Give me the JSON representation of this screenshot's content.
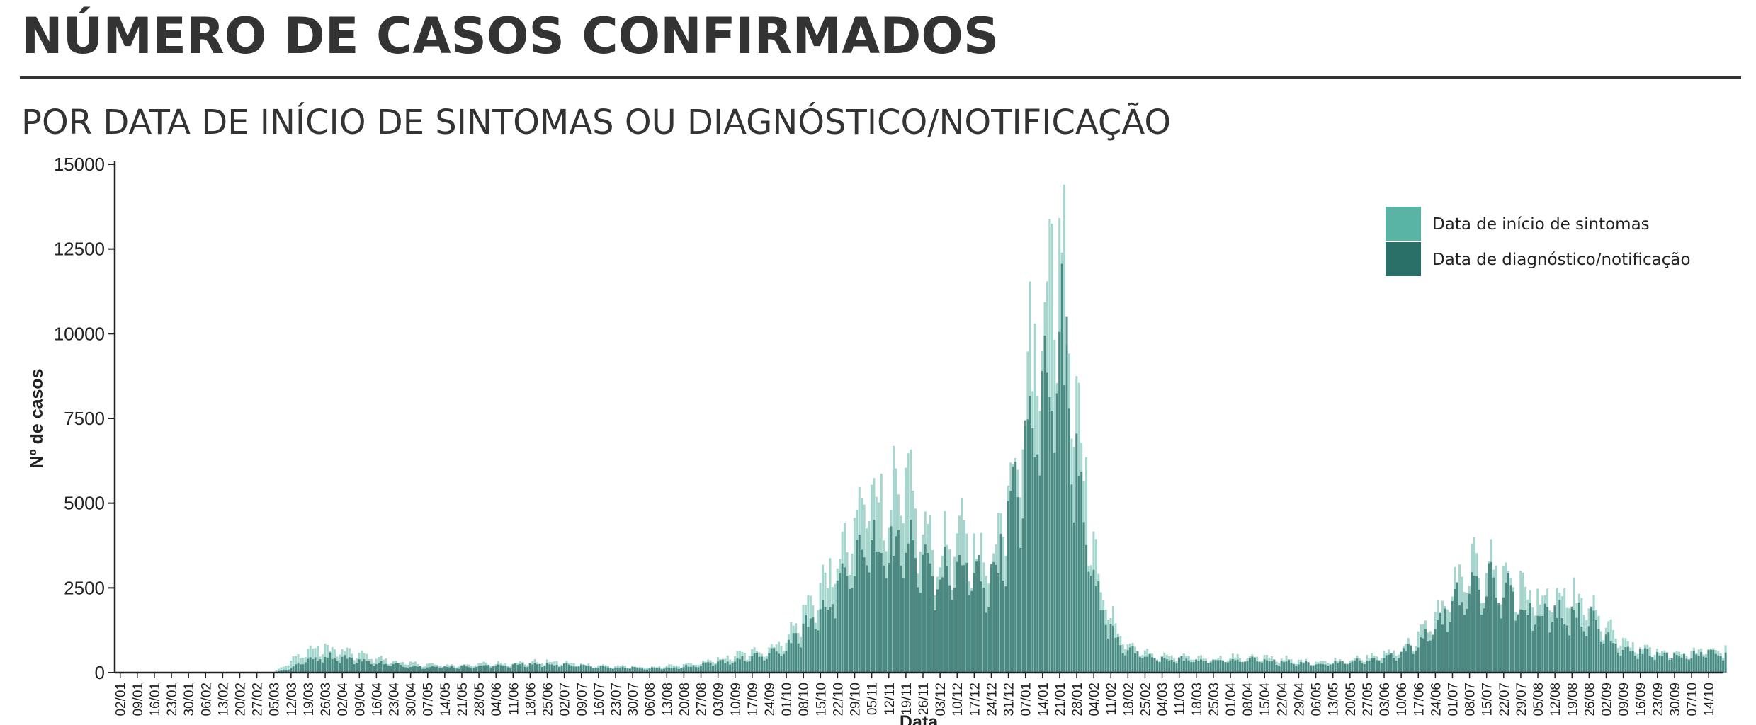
{
  "header": {
    "title": "NÚMERO DE CASOS CONFIRMADOS",
    "subtitle": "POR DATA DE INÍCIO DE SINTOMAS OU DIAGNÓSTICO/NOTIFICAÇÃO"
  },
  "colors": {
    "symptoms": "#5ab4a6",
    "diagnosis": "#2b7068",
    "text": "#333333"
  },
  "chart_data": {
    "type": "bar",
    "xlabel": "Data",
    "ylabel": "Nº de casos",
    "ylim": [
      0,
      15000
    ],
    "yticks": [
      0,
      2500,
      5000,
      7500,
      10000,
      12500,
      15000
    ],
    "x_start": "2020-01-02",
    "x_tick_step_days": 7,
    "tick_labels": [
      "02/01",
      "09/01",
      "16/01",
      "23/01",
      "30/01",
      "06/02",
      "13/02",
      "20/02",
      "27/02",
      "05/03",
      "12/03",
      "19/03",
      "26/03",
      "02/04",
      "09/04",
      "16/04",
      "23/04",
      "30/04",
      "07/05",
      "14/05",
      "21/05",
      "28/05",
      "04/06",
      "11/06",
      "18/06",
      "25/06",
      "02/07",
      "09/07",
      "16/07",
      "23/07",
      "30/07",
      "06/08",
      "13/08",
      "20/08",
      "27/08",
      "03/09",
      "10/09",
      "17/09",
      "24/09",
      "01/10",
      "08/10",
      "15/10",
      "22/10",
      "29/10",
      "05/11",
      "12/11",
      "19/11",
      "26/11",
      "03/12",
      "10/12",
      "17/12",
      "24/12",
      "31/12",
      "07/01",
      "14/01",
      "21/01",
      "28/01",
      "04/02",
      "11/02",
      "18/02",
      "25/02",
      "04/03",
      "11/03",
      "18/03",
      "25/03",
      "01/04",
      "08/04",
      "15/04",
      "22/04",
      "29/04",
      "06/05",
      "13/05",
      "20/05",
      "27/05",
      "03/06",
      "10/06",
      "17/06",
      "24/06",
      "01/07",
      "08/07",
      "15/07",
      "22/07",
      "29/07",
      "05/08",
      "12/08",
      "19/08",
      "26/08",
      "02/09",
      "09/09",
      "16/09",
      "23/09",
      "30/09",
      "07/10",
      "14/10"
    ],
    "legend": {
      "position": "top-right"
    },
    "grid": false,
    "series": [
      {
        "name": "Data de início de sintomas",
        "color": "#5ab4a6",
        "weekly_profile": [
          0,
          0,
          0,
          0,
          0,
          0,
          0,
          0,
          0,
          20,
          350,
          700,
          750,
          650,
          550,
          450,
          350,
          280,
          250,
          220,
          240,
          260,
          280,
          300,
          320,
          330,
          300,
          260,
          220,
          200,
          180,
          170,
          190,
          230,
          300,
          400,
          520,
          620,
          750,
          1050,
          1800,
          2600,
          3400,
          4300,
          6000,
          5200,
          5600,
          4300,
          3600,
          4200,
          3800,
          3400,
          6000,
          8500,
          11500,
          13500,
          9000,
          3600,
          1700,
          850,
          600,
          500,
          480,
          450,
          430,
          460,
          470,
          450,
          420,
          350,
          340,
          360,
          400,
          460,
          560,
          750,
          1100,
          1700,
          2500,
          3100,
          3300,
          3000,
          2600,
          2300,
          2200,
          2300,
          2000,
          1400,
          900,
          750,
          650,
          600,
          600,
          700
        ]
      },
      {
        "name": "Data de diagnóstico/notificação",
        "color": "#2b7068",
        "weekly_profile": [
          0,
          0,
          0,
          0,
          0,
          0,
          0,
          0,
          0,
          5,
          150,
          400,
          500,
          450,
          380,
          300,
          240,
          200,
          180,
          170,
          180,
          200,
          220,
          230,
          250,
          260,
          240,
          210,
          180,
          160,
          150,
          140,
          150,
          180,
          230,
          300,
          380,
          450,
          550,
          750,
          1300,
          1900,
          2600,
          3400,
          4000,
          3900,
          3900,
          3300,
          2900,
          3200,
          3000,
          2800,
          4500,
          6500,
          8500,
          10500,
          7000,
          2800,
          1300,
          700,
          480,
          420,
          400,
          380,
          360,
          380,
          390,
          370,
          340,
          290,
          280,
          300,
          330,
          380,
          460,
          600,
          900,
          1400,
          2000,
          2500,
          2700,
          2500,
          2100,
          1900,
          1800,
          1850,
          1650,
          1150,
          750,
          620,
          550,
          500,
          500,
          580
        ]
      }
    ],
    "notes": [
      "Daily bars generated from weekly profile"
    ]
  }
}
